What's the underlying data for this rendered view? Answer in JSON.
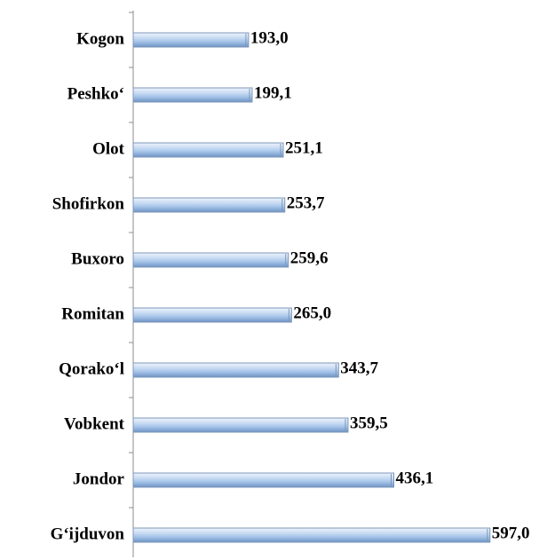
{
  "chart_data": {
    "type": "bar",
    "orientation": "horizontal",
    "categories": [
      "Kogon",
      "Peshko‘",
      "Olot",
      "Shofirkon",
      "Buxoro",
      "Romitan",
      "Qorako‘l",
      "Vobkent",
      "Jondor",
      "G‘ijduvon"
    ],
    "values": [
      193.0,
      199.1,
      251.1,
      253.7,
      259.6,
      265.0,
      343.7,
      359.5,
      436.1,
      597.0
    ],
    "value_labels": [
      "193,0",
      "199,1",
      "251,1",
      "253,7",
      "259,6",
      "265,0",
      "343,7",
      "359,5",
      "436,1",
      "597,0"
    ],
    "color": "#a8c6ea"
  }
}
